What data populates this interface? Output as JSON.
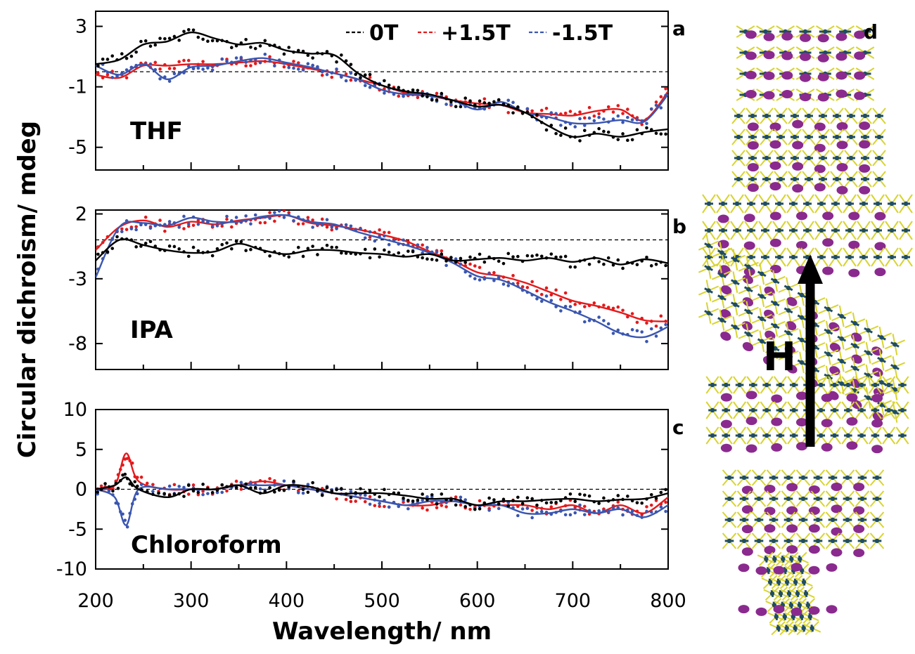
{
  "figure": {
    "ylabel": "Circular dichroism/ mdeg",
    "xlabel": "Wavelength/ nm",
    "x_ticks": [
      "200",
      "300",
      "400",
      "500",
      "600",
      "700",
      "800"
    ],
    "legend": [
      {
        "label": "0T",
        "color": "#000000"
      },
      {
        "label": "+1.5T",
        "color": "#e31a1c"
      },
      {
        "label": "-1.5T",
        "color": "#3a56b0"
      }
    ],
    "structure_panel": {
      "letter": "d",
      "arrow_label": "H"
    }
  },
  "chart_data": [
    {
      "type": "line",
      "panel": "a",
      "title": "THF",
      "xlim": [
        200,
        800
      ],
      "ylim": [
        -6.5,
        4
      ],
      "y_ticks": [
        "3",
        "-1",
        "-5"
      ],
      "x": [
        200,
        225,
        250,
        275,
        300,
        325,
        350,
        375,
        400,
        425,
        450,
        475,
        500,
        525,
        550,
        575,
        600,
        625,
        650,
        675,
        700,
        725,
        750,
        775,
        800
      ],
      "series": [
        {
          "name": "0T",
          "values": [
            0.5,
            0.8,
            1.8,
            2.0,
            2.6,
            2.2,
            1.8,
            1.9,
            1.4,
            1.2,
            1.1,
            -0.1,
            -0.9,
            -1.3,
            -1.5,
            -1.9,
            -2.3,
            -2.2,
            -2.7,
            -3.6,
            -4.3,
            -4.1,
            -4.3,
            -4.0,
            -3.8
          ]
        },
        {
          "name": "+1.5T",
          "values": [
            -0.2,
            -0.4,
            0.4,
            0.4,
            0.5,
            0.5,
            0.6,
            0.7,
            0.5,
            0.2,
            -0.1,
            -0.5,
            -0.9,
            -1.4,
            -1.6,
            -1.9,
            -2.1,
            -2.2,
            -2.7,
            -2.8,
            -2.9,
            -2.6,
            -2.5,
            -3.2,
            -1.3
          ]
        },
        {
          "name": "-1.5T",
          "values": [
            0.4,
            -0.2,
            0.5,
            -0.5,
            0.3,
            0.4,
            0.7,
            0.9,
            0.6,
            0.3,
            -0.1,
            -0.5,
            -1.2,
            -1.5,
            -1.6,
            -1.9,
            -2.5,
            -2.0,
            -2.7,
            -3.0,
            -3.4,
            -3.4,
            -3.2,
            -3.3,
            -1.5
          ]
        }
      ]
    },
    {
      "type": "line",
      "panel": "b",
      "title": "IPA",
      "xlim": [
        200,
        800
      ],
      "ylim": [
        -10,
        2.3
      ],
      "y_ticks": [
        "2",
        "-3",
        "-8"
      ],
      "x": [
        200,
        225,
        250,
        275,
        300,
        325,
        350,
        375,
        400,
        425,
        450,
        475,
        500,
        525,
        550,
        575,
        600,
        625,
        650,
        675,
        700,
        725,
        750,
        775,
        800
      ],
      "series": [
        {
          "name": "0T",
          "values": [
            -1.6,
            0.0,
            -0.4,
            -0.8,
            -1.0,
            -0.9,
            -0.3,
            -0.8,
            -1.1,
            -0.8,
            -0.8,
            -1.0,
            -1.1,
            -1.3,
            -1.1,
            -1.6,
            -1.5,
            -1.4,
            -1.6,
            -1.4,
            -1.7,
            -1.4,
            -1.9,
            -1.5,
            -1.8
          ]
        },
        {
          "name": "+1.5T",
          "values": [
            -0.8,
            1.0,
            1.5,
            1.0,
            1.4,
            1.2,
            1.5,
            1.7,
            1.9,
            1.3,
            1.1,
            0.8,
            0.4,
            -0.1,
            -0.9,
            -1.6,
            -2.5,
            -2.8,
            -3.3,
            -4.0,
            -4.7,
            -5.1,
            -5.6,
            -6.2,
            -6.3
          ]
        },
        {
          "name": "-1.5T",
          "values": [
            -2.9,
            1.0,
            1.3,
            1.1,
            1.7,
            1.4,
            1.4,
            1.8,
            1.9,
            1.4,
            1.2,
            0.6,
            0.1,
            -0.4,
            -1.0,
            -1.8,
            -2.8,
            -3.1,
            -3.9,
            -4.8,
            -5.5,
            -6.3,
            -7.2,
            -7.5,
            -6.7
          ]
        }
      ]
    },
    {
      "type": "line",
      "panel": "c",
      "title": "Chloroform",
      "xlim": [
        200,
        800
      ],
      "ylim": [
        -10,
        10
      ],
      "y_ticks": [
        "10",
        "5",
        "0",
        "-5",
        "-10"
      ],
      "x": [
        200,
        220,
        232,
        245,
        275,
        300,
        325,
        350,
        375,
        400,
        425,
        450,
        475,
        500,
        525,
        550,
        575,
        600,
        625,
        650,
        675,
        700,
        725,
        750,
        775,
        800
      ],
      "series": [
        {
          "name": "0T",
          "values": [
            0,
            0.5,
            1.5,
            0.0,
            -1.0,
            0.0,
            0.0,
            0.5,
            -0.5,
            0.5,
            0.3,
            -0.5,
            -0.5,
            -0.5,
            -0.8,
            -1.2,
            -1.2,
            -2.0,
            -1.5,
            -1.5,
            -1.3,
            -1.2,
            -1.5,
            -1.3,
            -1.2,
            -0.5
          ]
        },
        {
          "name": "+1.5T",
          "values": [
            0,
            0.5,
            4.5,
            1.0,
            0.0,
            0.0,
            0.0,
            0.5,
            1.0,
            0.5,
            0.0,
            -0.5,
            -1.0,
            -1.5,
            -2.0,
            -2.0,
            -1.5,
            -2.0,
            -2.0,
            -2.0,
            -2.5,
            -2.0,
            -3.0,
            -2.0,
            -3.0,
            -1.0
          ]
        },
        {
          "name": "-1.5T",
          "values": [
            0,
            -1.0,
            -4.5,
            0.0,
            0.0,
            0.0,
            0.0,
            0.5,
            0.5,
            0.5,
            0.0,
            -0.5,
            -1.0,
            -1.5,
            -2.0,
            -1.5,
            -1.5,
            -2.0,
            -2.0,
            -3.0,
            -3.0,
            -2.5,
            -3.0,
            -2.5,
            -3.5,
            -2.0
          ]
        }
      ]
    }
  ]
}
